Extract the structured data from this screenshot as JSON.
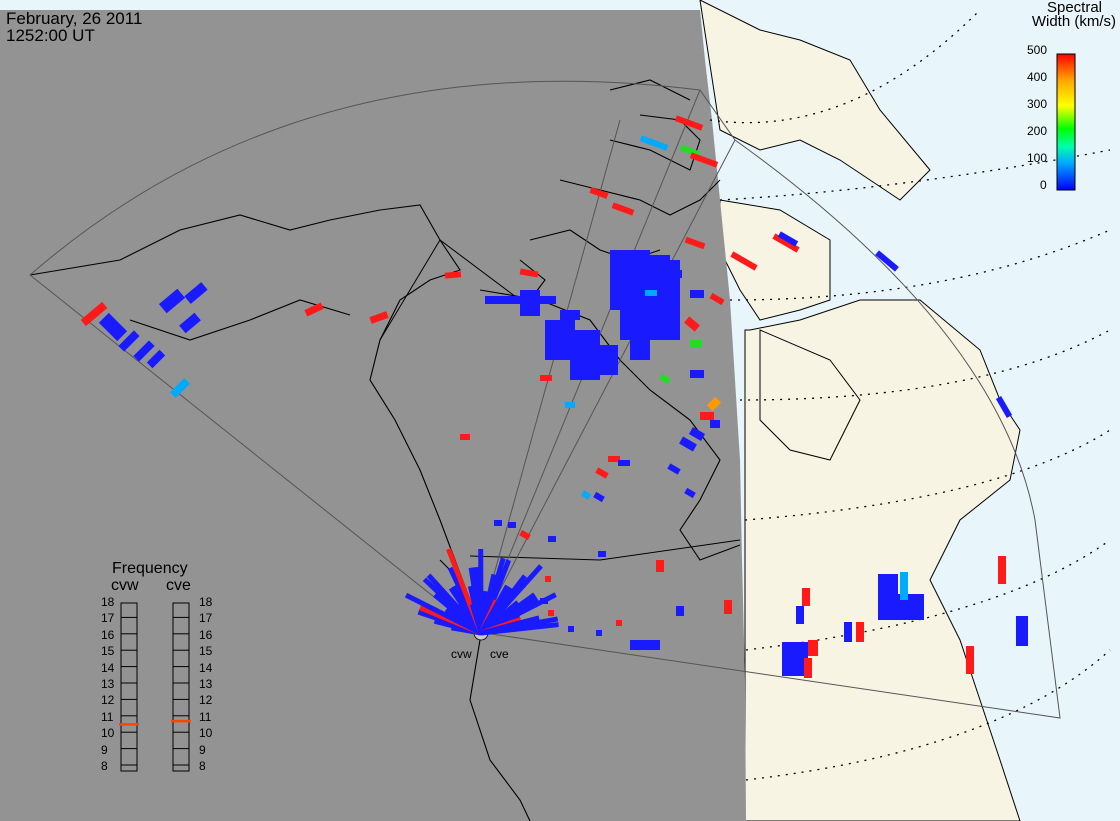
{
  "header": {
    "date": "February, 26 2011",
    "time": "1252:00 UT"
  },
  "legend": {
    "title_line1": "Spectral",
    "title_line2": "Width (km/s)",
    "ticks": [
      "500",
      "400",
      "300",
      "200",
      "100",
      "0"
    ],
    "colors": [
      "#0000ff",
      "#00aaff",
      "#00ffaa",
      "#00ff00",
      "#ffff00",
      "#ffaa00",
      "#ff0000"
    ]
  },
  "frequency": {
    "title": "Frequency",
    "radar_left": "cvw",
    "radar_right": "cve",
    "scale": [
      "18",
      "17",
      "16",
      "15",
      "14",
      "13",
      "12",
      "11",
      "10",
      "9",
      "8"
    ],
    "cvw_value_mhz": 10.6,
    "cve_value_mhz": 10.8,
    "marker_color": "#ff4400"
  },
  "radar_labels": {
    "left": "cvw",
    "right": "cve"
  },
  "map": {
    "night_color": "#939393",
    "day_land_color": "#f7f4e4",
    "day_ocean_color": "#e8f6fc",
    "fov_color": "#555555"
  }
}
